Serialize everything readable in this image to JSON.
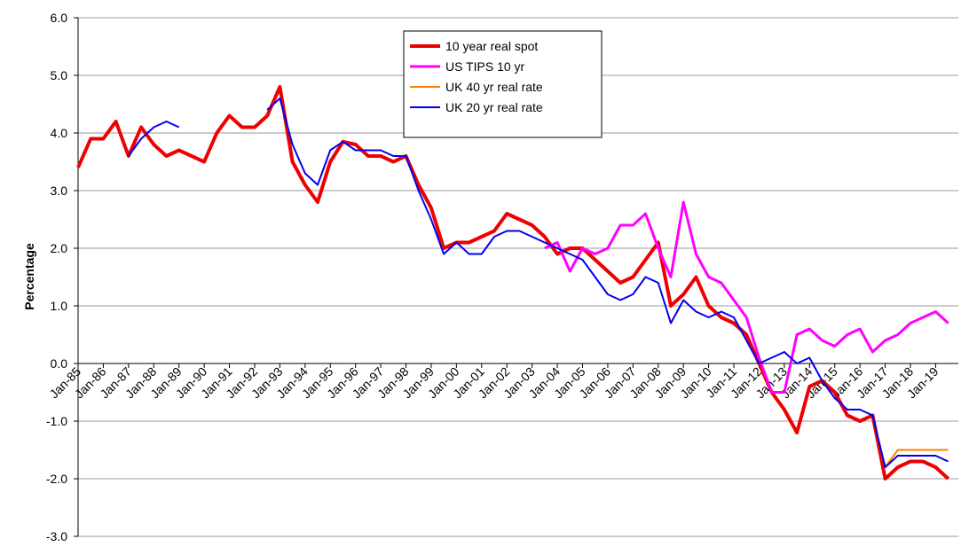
{
  "chart_data": {
    "type": "line",
    "y_label": "Percentage",
    "x": [
      1985,
      1985.5,
      1986,
      1986.5,
      1987,
      1987.5,
      1988,
      1988.5,
      1989,
      1989.5,
      1990,
      1990.5,
      1991,
      1991.5,
      1992,
      1992.5,
      1993,
      1993.5,
      1994,
      1994.5,
      1995,
      1995.5,
      1996,
      1996.5,
      1997,
      1997.5,
      1998,
      1998.5,
      1999,
      1999.5,
      2000,
      2000.5,
      2001,
      2001.5,
      2002,
      2002.5,
      2003,
      2003.5,
      2004,
      2004.5,
      2005,
      2005.5,
      2006,
      2006.5,
      2007,
      2007.5,
      2008,
      2008.5,
      2009,
      2009.5,
      2010,
      2010.5,
      2011,
      2011.5,
      2012,
      2012.5,
      2013,
      2013.5,
      2014,
      2014.5,
      2015,
      2015.5,
      2016,
      2016.5,
      2017,
      2017.5,
      2018,
      2018.5,
      2019,
      2019.5
    ],
    "series": [
      {
        "name": "10 year real spot",
        "color": "#ee0000",
        "width": 4,
        "values": [
          3.4,
          3.9,
          3.9,
          4.2,
          3.6,
          4.1,
          3.8,
          3.6,
          3.7,
          3.6,
          3.5,
          4.0,
          4.3,
          4.1,
          4.1,
          4.3,
          4.8,
          3.5,
          3.1,
          2.8,
          3.5,
          3.85,
          3.8,
          3.6,
          3.6,
          3.5,
          3.6,
          3.1,
          2.7,
          2.0,
          2.1,
          2.1,
          2.2,
          2.3,
          2.6,
          2.5,
          2.4,
          2.2,
          1.9,
          2.0,
          2.0,
          1.8,
          1.6,
          1.4,
          1.5,
          1.8,
          2.1,
          1.0,
          1.2,
          1.5,
          1.0,
          0.8,
          0.7,
          0.5,
          0.0,
          -0.5,
          -0.8,
          -1.2,
          -0.4,
          -0.3,
          -0.5,
          -0.9,
          -1.0,
          -0.9,
          -2.0,
          -1.8,
          -1.7,
          -1.7,
          -1.8,
          -2.0
        ]
      },
      {
        "name": "US TIPS 10 yr",
        "color": "#ff00ff",
        "width": 3,
        "values": [
          null,
          null,
          null,
          null,
          null,
          null,
          null,
          null,
          null,
          null,
          null,
          null,
          null,
          null,
          null,
          null,
          null,
          null,
          null,
          null,
          null,
          null,
          null,
          null,
          null,
          null,
          null,
          null,
          null,
          null,
          null,
          null,
          null,
          null,
          null,
          null,
          null,
          2.0,
          2.1,
          1.6,
          2.0,
          1.9,
          2.0,
          2.4,
          2.4,
          2.6,
          2.0,
          1.5,
          2.8,
          1.9,
          1.5,
          1.4,
          1.1,
          0.8,
          0.1,
          -0.5,
          -0.5,
          0.5,
          0.6,
          0.4,
          0.3,
          0.5,
          0.6,
          0.2,
          0.4,
          0.5,
          0.7,
          0.8,
          0.9,
          0.7
        ]
      },
      {
        "name": "UK 40 yr real rate",
        "color": "#ff7f00",
        "width": 2,
        "values": [
          null,
          null,
          null,
          null,
          null,
          null,
          null,
          null,
          null,
          null,
          null,
          null,
          null,
          null,
          null,
          null,
          null,
          null,
          null,
          null,
          null,
          null,
          null,
          null,
          null,
          null,
          null,
          null,
          null,
          null,
          null,
          null,
          null,
          null,
          null,
          null,
          null,
          null,
          null,
          null,
          null,
          null,
          null,
          null,
          null,
          null,
          null,
          null,
          null,
          null,
          null,
          null,
          null,
          null,
          null,
          null,
          null,
          null,
          null,
          null,
          null,
          null,
          null,
          null,
          -1.8,
          -1.5,
          -1.5,
          -1.5,
          -1.5,
          -1.5
        ]
      },
      {
        "name": "UK 20 yr real rate",
        "color": "#0000ee",
        "width": 2,
        "values": [
          null,
          null,
          null,
          null,
          3.6,
          3.9,
          4.1,
          4.2,
          4.1,
          null,
          null,
          null,
          null,
          null,
          null,
          4.4,
          4.6,
          3.8,
          3.3,
          3.1,
          3.7,
          3.85,
          3.7,
          3.7,
          3.7,
          3.6,
          3.6,
          3.0,
          2.5,
          1.9,
          2.1,
          1.9,
          1.9,
          2.2,
          2.3,
          2.3,
          2.2,
          2.1,
          2.0,
          1.9,
          1.8,
          1.5,
          1.2,
          1.1,
          1.2,
          1.5,
          1.4,
          0.7,
          1.1,
          0.9,
          0.8,
          0.9,
          0.8,
          0.4,
          0.0,
          0.1,
          0.2,
          0.0,
          0.1,
          -0.3,
          -0.6,
          -0.8,
          -0.8,
          -0.9,
          -1.8,
          -1.6,
          -1.6,
          -1.6,
          -1.6,
          -1.7
        ]
      }
    ],
    "ylim": [
      -3,
      6
    ],
    "yticks": [
      {
        "value": -3,
        "label": "-3.0"
      },
      {
        "value": -2,
        "label": "-2.0"
      },
      {
        "value": -1,
        "label": "-1.0"
      },
      {
        "value": 0,
        "label": "0.0"
      },
      {
        "value": 1,
        "label": "1.0"
      },
      {
        "value": 2,
        "label": "2.0"
      },
      {
        "value": 3,
        "label": "3.0"
      },
      {
        "value": 4,
        "label": "4.0"
      },
      {
        "value": 5,
        "label": "5.0"
      },
      {
        "value": 6,
        "label": "6.0"
      }
    ],
    "xlim": [
      1985,
      2019.9
    ],
    "xticks": [
      {
        "value": 1985,
        "label": "Jan-85"
      },
      {
        "value": 1986,
        "label": "Jan-86"
      },
      {
        "value": 1987,
        "label": "Jan-87"
      },
      {
        "value": 1988,
        "label": "Jan-88"
      },
      {
        "value": 1989,
        "label": "Jan-89"
      },
      {
        "value": 1990,
        "label": "Jan-90"
      },
      {
        "value": 1991,
        "label": "Jan-91"
      },
      {
        "value": 1992,
        "label": "Jan-92"
      },
      {
        "value": 1993,
        "label": "Jan-93"
      },
      {
        "value": 1994,
        "label": "Jan-94"
      },
      {
        "value": 1995,
        "label": "Jan-95"
      },
      {
        "value": 1996,
        "label": "Jan-96"
      },
      {
        "value": 1997,
        "label": "Jan-97"
      },
      {
        "value": 1998,
        "label": "Jan-98"
      },
      {
        "value": 1999,
        "label": "Jan-99"
      },
      {
        "value": 2000,
        "label": "Jan-00"
      },
      {
        "value": 2001,
        "label": "Jan-01"
      },
      {
        "value": 2002,
        "label": "Jan-02"
      },
      {
        "value": 2003,
        "label": "Jan-03"
      },
      {
        "value": 2004,
        "label": "Jan-04"
      },
      {
        "value": 2005,
        "label": "Jan-05"
      },
      {
        "value": 2006,
        "label": "Jan-06"
      },
      {
        "value": 2007,
        "label": "Jan-07"
      },
      {
        "value": 2008,
        "label": "Jan-08"
      },
      {
        "value": 2009,
        "label": "Jan-09"
      },
      {
        "value": 2010,
        "label": "Jan-10"
      },
      {
        "value": 2011,
        "label": "Jan-11"
      },
      {
        "value": 2012,
        "label": "Jan-12"
      },
      {
        "value": 2013,
        "label": "Jan-13"
      },
      {
        "value": 2014,
        "label": "Jan-14"
      },
      {
        "value": 2015,
        "label": "Jan-15"
      },
      {
        "value": 2016,
        "label": "Jan-16"
      },
      {
        "value": 2017,
        "label": "Jan-17"
      },
      {
        "value": 2018,
        "label": "Jan-18"
      },
      {
        "value": 2019,
        "label": "Jan-19"
      }
    ],
    "grid": true
  }
}
